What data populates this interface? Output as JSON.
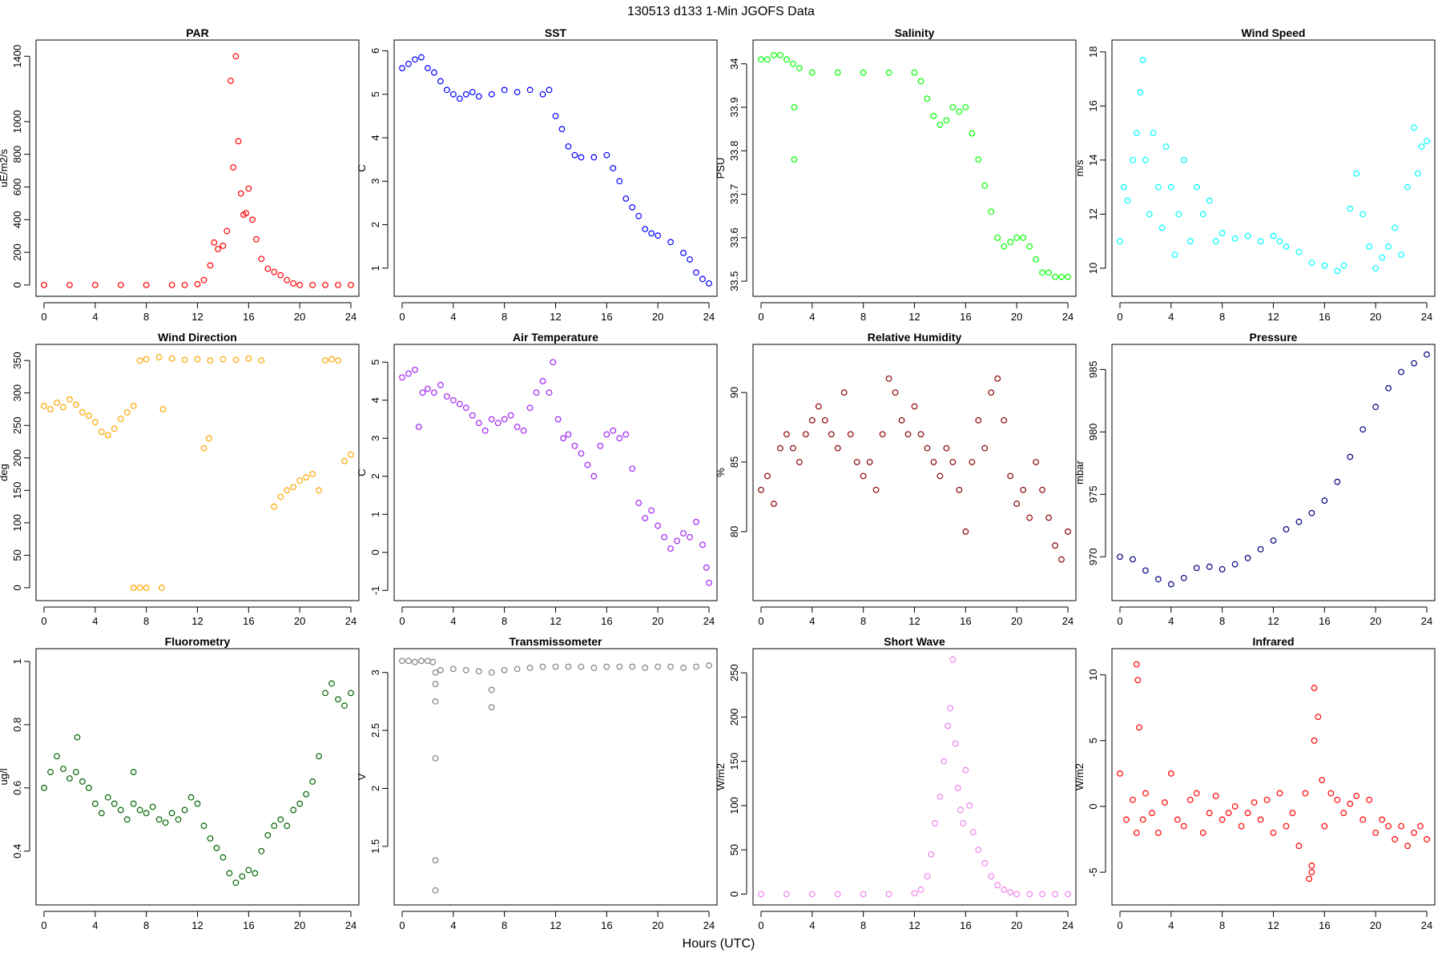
{
  "title": "130513   d133   1-Min  JGOFS Data",
  "xlabel": "Hours (UTC)",
  "chart_data": [
    {
      "type": "scatter",
      "title": "PAR",
      "ylabel": "uE/m2/s",
      "color": "#ff0000",
      "xlim": [
        0,
        24
      ],
      "ylim": [
        -30,
        1460
      ],
      "xticks": [
        0,
        4,
        8,
        12,
        16,
        20,
        24
      ],
      "yticks": [
        0,
        200,
        400,
        600,
        800,
        1000,
        1400
      ],
      "x": [
        0,
        2,
        4,
        6,
        8,
        10,
        11,
        12,
        12.5,
        13,
        13.3,
        13.6,
        14,
        14.3,
        14.6,
        14.8,
        15,
        15.2,
        15.4,
        15.6,
        15.8,
        16,
        16.3,
        16.6,
        17,
        17.5,
        18,
        18.5,
        19,
        19.5,
        20,
        21,
        22,
        23,
        24
      ],
      "y": [
        0,
        0,
        0,
        0,
        0,
        0,
        0,
        5,
        30,
        120,
        260,
        220,
        240,
        330,
        1250,
        720,
        1400,
        880,
        560,
        430,
        440,
        590,
        400,
        280,
        160,
        100,
        80,
        60,
        30,
        10,
        0,
        0,
        0,
        0,
        0
      ]
    },
    {
      "type": "scatter",
      "title": "SST",
      "ylabel": "C",
      "color": "#0000ff",
      "xlim": [
        0,
        24
      ],
      "ylim": [
        0.5,
        6.1
      ],
      "xticks": [
        0,
        4,
        8,
        12,
        16,
        20,
        24
      ],
      "yticks": [
        1,
        2,
        3,
        4,
        5,
        6
      ],
      "x": [
        0,
        0.5,
        1,
        1.5,
        2,
        2.5,
        3,
        3.5,
        4,
        4.5,
        5,
        5.5,
        6,
        7,
        8,
        9,
        10,
        11,
        11.5,
        12,
        12.5,
        13,
        13.5,
        14,
        15,
        16,
        16.5,
        17,
        17.5,
        18,
        18.5,
        19,
        19.5,
        20,
        21,
        22,
        22.5,
        23,
        23.5,
        24
      ],
      "y": [
        5.6,
        5.7,
        5.8,
        5.85,
        5.6,
        5.5,
        5.3,
        5.1,
        5.0,
        4.9,
        5.0,
        5.05,
        4.95,
        5.0,
        5.1,
        5.05,
        5.1,
        5.0,
        5.1,
        4.5,
        4.2,
        3.8,
        3.6,
        3.55,
        3.55,
        3.6,
        3.3,
        3.0,
        2.6,
        2.4,
        2.2,
        1.9,
        1.8,
        1.75,
        1.6,
        1.35,
        1.2,
        0.9,
        0.75,
        0.65
      ]
    },
    {
      "type": "scatter",
      "title": "Salinity",
      "ylabel": "PSU",
      "color": "#00ff00",
      "xlim": [
        0,
        24
      ],
      "ylim": [
        33.48,
        34.04
      ],
      "xticks": [
        0,
        4,
        8,
        12,
        16,
        20,
        24
      ],
      "yticks": [
        33.5,
        33.6,
        33.7,
        33.8,
        33.9,
        34.0
      ],
      "x": [
        0,
        0.5,
        1,
        1.5,
        2,
        2.5,
        3,
        4,
        6,
        8,
        10,
        12,
        12.5,
        13,
        13.5,
        14,
        14.5,
        15,
        15.5,
        16,
        16.5,
        17,
        17.5,
        18,
        18.5,
        19,
        19.5,
        20,
        20.5,
        21,
        21.5,
        22,
        22.5,
        23,
        23.5,
        24,
        2.6,
        2.6
      ],
      "y": [
        34.01,
        34.01,
        34.02,
        34.02,
        34.01,
        34.0,
        33.99,
        33.98,
        33.98,
        33.98,
        33.98,
        33.98,
        33.96,
        33.92,
        33.88,
        33.86,
        33.87,
        33.9,
        33.89,
        33.9,
        33.84,
        33.78,
        33.72,
        33.66,
        33.6,
        33.58,
        33.59,
        33.6,
        33.6,
        33.58,
        33.55,
        33.52,
        33.52,
        33.51,
        33.51,
        33.51,
        33.9,
        33.78
      ]
    },
    {
      "type": "scatter",
      "title": "Wind Speed",
      "ylabel": "m/s",
      "color": "#00ffff",
      "xlim": [
        0,
        24
      ],
      "ylim": [
        9.2,
        18.2
      ],
      "xticks": [
        0,
        4,
        8,
        12,
        16,
        20,
        24
      ],
      "yticks": [
        10,
        12,
        14,
        16,
        18
      ],
      "x": [
        0,
        0.3,
        0.6,
        1,
        1.3,
        1.6,
        1.8,
        2,
        2.3,
        2.6,
        3,
        3.3,
        3.6,
        4,
        4.3,
        4.6,
        5,
        5.5,
        6,
        6.5,
        7,
        7.5,
        8,
        9,
        10,
        11,
        12,
        12.5,
        13,
        14,
        15,
        16,
        17,
        17.5,
        18,
        18.5,
        19,
        19.5,
        20,
        20.5,
        21,
        21.5,
        22,
        22.5,
        23,
        23.3,
        23.6,
        24
      ],
      "y": [
        11,
        13,
        12.5,
        14,
        15,
        16.5,
        17.7,
        14,
        12,
        15,
        13,
        11.5,
        14.5,
        13,
        10.5,
        12,
        14,
        11,
        13,
        12,
        12.5,
        11,
        11.3,
        11.1,
        11.2,
        11,
        11.2,
        11,
        10.8,
        10.6,
        10.2,
        10.1,
        9.9,
        10.1,
        12.2,
        13.5,
        12,
        10.8,
        10,
        10.4,
        10.8,
        11.5,
        10.5,
        13,
        15.2,
        13.5,
        14.5,
        14.7
      ]
    },
    {
      "type": "scatter",
      "title": "Wind Direction",
      "ylabel": "deg",
      "color": "#ffa500",
      "xlim": [
        0,
        24
      ],
      "ylim": [
        -10,
        365
      ],
      "xticks": [
        0,
        4,
        8,
        12,
        16,
        20,
        24
      ],
      "yticks": [
        0,
        50,
        100,
        150,
        200,
        250,
        300,
        350
      ],
      "x": [
        0,
        0.5,
        1,
        1.5,
        2,
        2.5,
        3,
        3.5,
        4,
        4.5,
        5,
        5.5,
        6,
        6.5,
        7,
        7.5,
        8,
        9,
        10,
        11,
        12,
        13,
        14,
        15,
        16,
        17,
        18,
        18.5,
        19,
        19.5,
        20,
        20.5,
        21,
        21.5,
        22,
        22.5,
        23,
        23.5,
        24,
        7,
        7.5,
        8,
        9.2,
        12.5,
        12.9,
        9.3
      ],
      "y": [
        280,
        275,
        285,
        278,
        290,
        282,
        270,
        265,
        255,
        240,
        235,
        245,
        260,
        270,
        280,
        350,
        352,
        355,
        353,
        351,
        352,
        350,
        352,
        351,
        353,
        350,
        125,
        140,
        150,
        155,
        165,
        170,
        175,
        150,
        350,
        352,
        350,
        195,
        205,
        0,
        0,
        0,
        0,
        215,
        230,
        275
      ]
    },
    {
      "type": "scatter",
      "title": "Air Temperature",
      "ylabel": "C",
      "color": "#a020f0",
      "xlim": [
        0,
        24
      ],
      "ylim": [
        -1.1,
        5.3
      ],
      "xticks": [
        0,
        4,
        8,
        12,
        16,
        20,
        24
      ],
      "yticks": [
        -1,
        0,
        1,
        2,
        3,
        4,
        5
      ],
      "x": [
        0,
        0.5,
        1,
        1.3,
        1.6,
        2,
        2.5,
        3,
        3.5,
        4,
        4.5,
        5,
        5.5,
        6,
        6.5,
        7,
        7.5,
        8,
        8.5,
        9,
        9.5,
        10,
        10.5,
        11,
        11.5,
        11.8,
        12.2,
        12.6,
        13,
        13.5,
        14,
        14.5,
        15,
        15.5,
        16,
        16.5,
        17,
        17.5,
        18,
        18.5,
        19,
        19.5,
        20,
        20.5,
        21,
        21.5,
        22,
        22.5,
        23,
        23.5,
        23.8,
        24
      ],
      "y": [
        4.6,
        4.7,
        4.8,
        3.3,
        4.2,
        4.3,
        4.2,
        4.4,
        4.1,
        4.0,
        3.9,
        3.8,
        3.6,
        3.4,
        3.2,
        3.5,
        3.4,
        3.5,
        3.6,
        3.3,
        3.2,
        3.8,
        4.2,
        4.5,
        4.2,
        5.0,
        3.5,
        3.0,
        3.1,
        2.8,
        2.6,
        2.3,
        2.0,
        2.8,
        3.1,
        3.2,
        3.0,
        3.1,
        2.2,
        1.3,
        0.9,
        1.1,
        0.7,
        0.4,
        0.1,
        0.3,
        0.5,
        0.4,
        0.8,
        0.2,
        -0.4,
        -0.8
      ]
    },
    {
      "type": "scatter",
      "title": "Relative Humidity",
      "ylabel": "%",
      "color": "#8b0000",
      "xlim": [
        0,
        24
      ],
      "ylim": [
        75.5,
        93
      ],
      "xticks": [
        0,
        4,
        8,
        12,
        16,
        20,
        24
      ],
      "yticks": [
        80,
        85,
        90
      ],
      "x": [
        0,
        0.5,
        1,
        1.5,
        2,
        2.5,
        3,
        3.5,
        4,
        4.5,
        5,
        5.5,
        6,
        6.5,
        7,
        7.5,
        8,
        8.5,
        9,
        9.5,
        10,
        10.5,
        11,
        11.5,
        12,
        12.5,
        13,
        13.5,
        14,
        14.5,
        15,
        15.5,
        16,
        16.5,
        17,
        17.5,
        18,
        18.5,
        19,
        19.5,
        20,
        20.5,
        21,
        21.5,
        22,
        22.5,
        23,
        23.5,
        24
      ],
      "y": [
        83,
        84,
        82,
        86,
        87,
        86,
        85,
        87,
        88,
        89,
        88,
        87,
        86,
        90,
        87,
        85,
        84,
        85,
        83,
        87,
        91,
        90,
        88,
        87,
        89,
        87,
        86,
        85,
        84,
        86,
        85,
        83,
        80,
        85,
        88,
        86,
        90,
        91,
        88,
        84,
        82,
        83,
        81,
        85,
        83,
        81,
        79,
        78,
        80
      ]
    },
    {
      "type": "scatter",
      "title": "Pressure",
      "ylabel": "mbar",
      "color": "#000080",
      "xlim": [
        0,
        24
      ],
      "ylim": [
        967,
        986.5
      ],
      "xticks": [
        0,
        4,
        8,
        12,
        16,
        20,
        24
      ],
      "yticks": [
        970,
        975,
        980,
        985
      ],
      "x": [
        0,
        1,
        2,
        3,
        4,
        5,
        6,
        7,
        8,
        9,
        10,
        11,
        12,
        13,
        14,
        15,
        16,
        17,
        18,
        19,
        20,
        21,
        22,
        23,
        24
      ],
      "y": [
        970,
        969.8,
        968.9,
        968.2,
        967.8,
        968.3,
        969.1,
        969.2,
        969.0,
        969.4,
        969.9,
        970.6,
        971.3,
        972.2,
        972.8,
        973.5,
        974.5,
        976.0,
        978.0,
        980.2,
        982.0,
        983.5,
        984.8,
        985.5,
        986.2
      ]
    },
    {
      "type": "scatter",
      "title": "Fluorometry",
      "ylabel": "ug/l",
      "color": "#006400",
      "xlim": [
        0,
        24
      ],
      "ylim": [
        0.25,
        1.02
      ],
      "xticks": [
        0,
        4,
        8,
        12,
        16,
        20,
        24
      ],
      "yticks": [
        0.4,
        0.6,
        0.8,
        1.0
      ],
      "x": [
        0,
        0.5,
        1,
        1.5,
        2,
        2.5,
        3,
        3.5,
        4,
        4.5,
        5,
        5.5,
        6,
        6.5,
        7,
        7.5,
        8,
        8.5,
        9,
        9.5,
        10,
        10.5,
        11,
        11.5,
        12,
        12.5,
        13,
        13.5,
        14,
        14.5,
        15,
        15.5,
        16,
        16.5,
        17,
        17.5,
        18,
        18.5,
        19,
        19.5,
        20,
        20.5,
        21,
        21.5,
        22,
        22.5,
        23,
        23.5,
        24,
        2.6,
        7
      ],
      "y": [
        0.6,
        0.65,
        0.7,
        0.66,
        0.63,
        0.65,
        0.62,
        0.6,
        0.55,
        0.52,
        0.57,
        0.55,
        0.53,
        0.5,
        0.55,
        0.53,
        0.52,
        0.54,
        0.5,
        0.49,
        0.52,
        0.5,
        0.53,
        0.57,
        0.55,
        0.48,
        0.44,
        0.41,
        0.38,
        0.33,
        0.3,
        0.32,
        0.34,
        0.33,
        0.4,
        0.45,
        0.48,
        0.5,
        0.48,
        0.53,
        0.55,
        0.58,
        0.62,
        0.7,
        0.9,
        0.93,
        0.88,
        0.86,
        0.9,
        0.76,
        0.65
      ]
    },
    {
      "type": "scatter",
      "title": "Transmissometer",
      "ylabel": "V",
      "color": "#808080",
      "xlim": [
        0,
        24
      ],
      "ylim": [
        1.05,
        3.15
      ],
      "xticks": [
        0,
        4,
        8,
        12,
        16,
        20,
        24
      ],
      "yticks": [
        1.5,
        2.0,
        2.5,
        3.0
      ],
      "x": [
        0,
        0.5,
        1,
        1.5,
        2,
        2.4,
        2.6,
        3,
        4,
        5,
        6,
        7,
        8,
        9,
        10,
        11,
        12,
        13,
        14,
        15,
        16,
        17,
        18,
        19,
        20,
        21,
        22,
        23,
        24,
        2.6,
        2.6,
        2.6,
        2.6,
        2.6,
        7,
        7
      ],
      "y": [
        3.1,
        3.1,
        3.09,
        3.1,
        3.1,
        3.09,
        3.0,
        3.02,
        3.03,
        3.02,
        3.01,
        3.0,
        3.02,
        3.03,
        3.04,
        3.05,
        3.05,
        3.05,
        3.05,
        3.04,
        3.05,
        3.05,
        3.05,
        3.04,
        3.05,
        3.05,
        3.04,
        3.05,
        3.06,
        2.9,
        2.75,
        2.26,
        1.38,
        1.12,
        2.85,
        2.7
      ]
    },
    {
      "type": "scatter",
      "title": "Short Wave",
      "ylabel": "W/m2",
      "color": "#ee82ee",
      "xlim": [
        0,
        24
      ],
      "ylim": [
        -5,
        270
      ],
      "xticks": [
        0,
        4,
        8,
        12,
        16,
        20,
        24
      ],
      "yticks": [
        0,
        50,
        100,
        150,
        200,
        250
      ],
      "x": [
        0,
        2,
        4,
        6,
        8,
        10,
        12,
        12.5,
        13,
        13.3,
        13.6,
        14,
        14.3,
        14.6,
        14.8,
        15,
        15.2,
        15.4,
        15.6,
        15.8,
        16,
        16.3,
        16.6,
        17,
        17.5,
        18,
        18.5,
        19,
        19.5,
        20,
        21,
        22,
        23,
        24
      ],
      "y": [
        0,
        0,
        0,
        0,
        0,
        0,
        1,
        5,
        20,
        45,
        80,
        110,
        150,
        190,
        210,
        265,
        170,
        120,
        95,
        80,
        140,
        100,
        70,
        50,
        35,
        20,
        10,
        5,
        2,
        0,
        0,
        0,
        0,
        0
      ]
    },
    {
      "type": "scatter",
      "title": "Infrared",
      "ylabel": "W/m2",
      "color": "#ff0000",
      "xlim": [
        0,
        24
      ],
      "ylim": [
        -7,
        11.5
      ],
      "xticks": [
        0,
        4,
        8,
        12,
        16,
        20,
        24
      ],
      "yticks": [
        -5,
        0,
        5,
        10
      ],
      "x": [
        0,
        0.5,
        1,
        1.3,
        1.5,
        1.8,
        2,
        2.5,
        3,
        3.5,
        4,
        4.5,
        5,
        5.5,
        6,
        6.5,
        7,
        7.5,
        8,
        8.5,
        9,
        9.5,
        10,
        10.5,
        11,
        11.5,
        12,
        12.5,
        13,
        13.5,
        14,
        14.5,
        14.8,
        15,
        15.2,
        15.5,
        15.8,
        16,
        16.5,
        17,
        17.5,
        18,
        18.5,
        19,
        19.5,
        20,
        20.5,
        21,
        21.5,
        22,
        22.5,
        23,
        23.5,
        24,
        1.3,
        1.4,
        15,
        15.2
      ],
      "y": [
        2.5,
        -1,
        0.5,
        -2,
        6,
        -1,
        1,
        -0.5,
        -2,
        0.3,
        2.5,
        -1,
        -1.5,
        0.5,
        1,
        -2,
        -0.5,
        0.8,
        -1,
        -0.5,
        0,
        -1.5,
        -0.5,
        0.3,
        -1,
        0.5,
        -2,
        1,
        -1.5,
        -0.5,
        -3,
        1,
        -5.5,
        -4.5,
        5,
        6.8,
        2,
        -1.5,
        1,
        0.5,
        -0.5,
        0.2,
        0.8,
        -1,
        0.5,
        -2,
        -1,
        -1.5,
        -2.5,
        -1.5,
        -3,
        -2,
        -1.5,
        -2.5,
        10.8,
        9.6,
        -5,
        9
      ]
    }
  ]
}
